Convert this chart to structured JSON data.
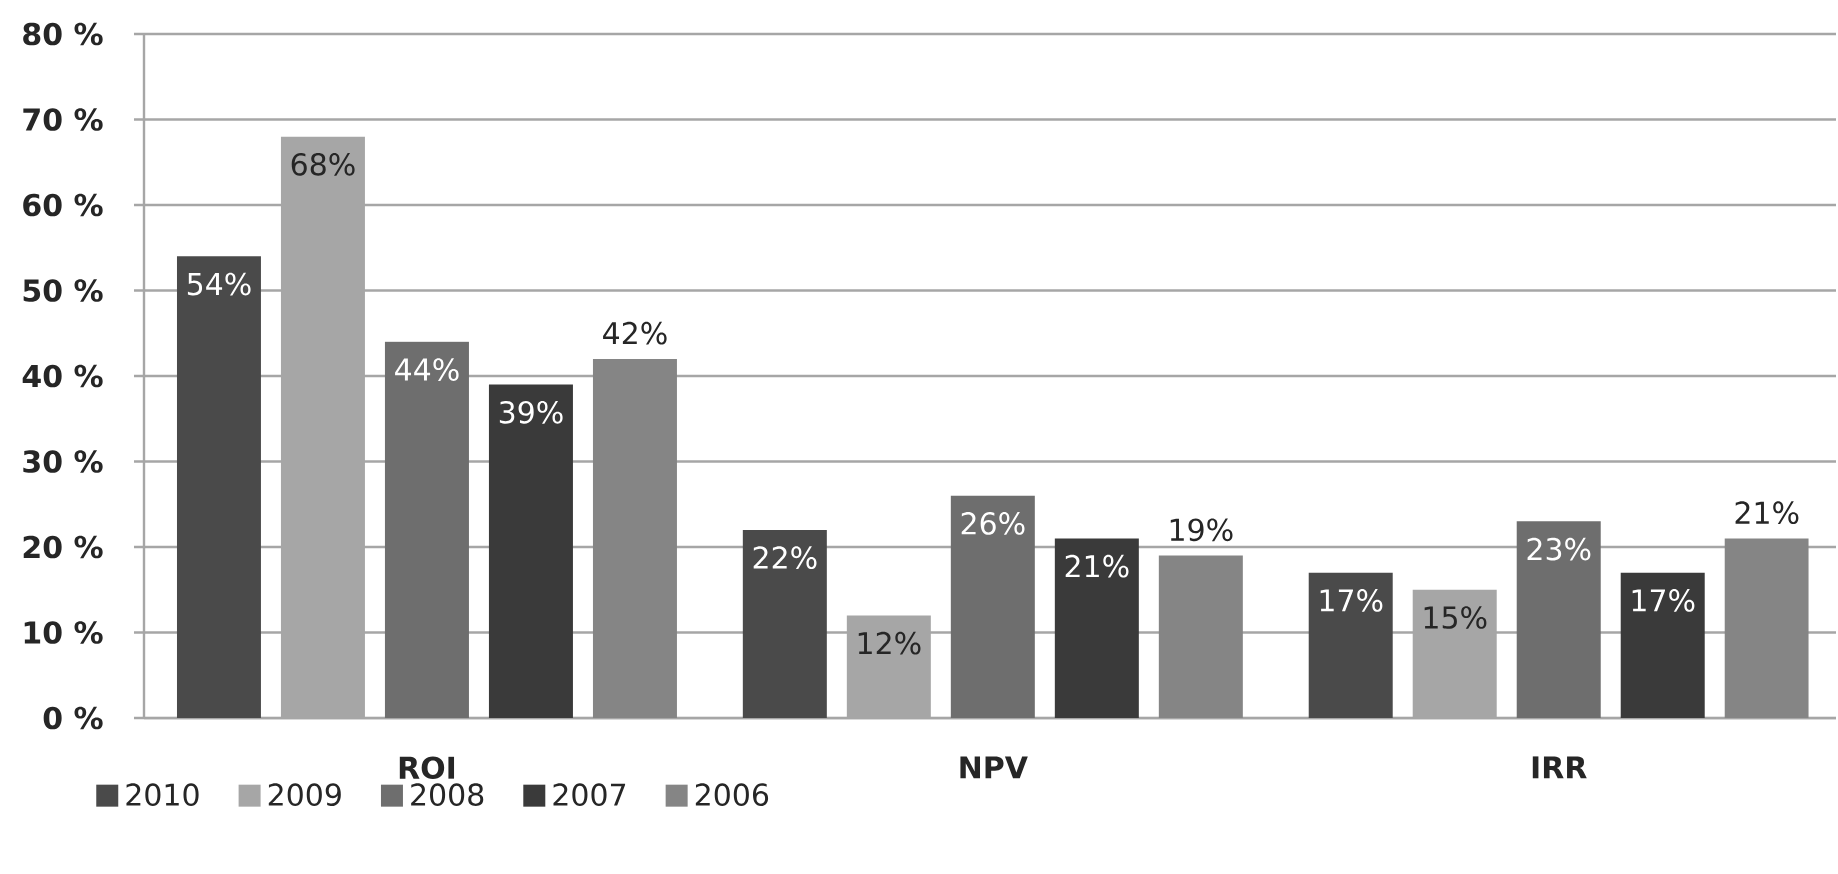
{
  "chart_data": {
    "type": "bar",
    "categories": [
      "ROI",
      "NPV",
      "IRR"
    ],
    "series": [
      {
        "name": "2010",
        "color": "#4a4a4a",
        "values": [
          54,
          22,
          17
        ],
        "value_labels": [
          "54%",
          "22%",
          "17%"
        ]
      },
      {
        "name": "2009",
        "color": "#a6a6a6",
        "values": [
          68,
          12,
          15
        ],
        "value_labels": [
          "68%",
          "12%",
          "15%"
        ]
      },
      {
        "name": "2008",
        "color": "#6e6e6e",
        "values": [
          44,
          26,
          23
        ],
        "value_labels": [
          "44%",
          "26%",
          "23%"
        ]
      },
      {
        "name": "2007",
        "color": "#3a3a3a",
        "values": [
          39,
          21,
          17
        ],
        "value_labels": [
          "39%",
          "21%",
          "17%"
        ]
      },
      {
        "name": "2006",
        "color": "#858585",
        "values": [
          42,
          19,
          21
        ],
        "value_labels": [
          "42%",
          "19%",
          "21%"
        ]
      }
    ],
    "ylim": [
      0,
      80
    ],
    "yticks": [
      {
        "value": 0,
        "label": "0 %"
      },
      {
        "value": 10,
        "label": "10 %"
      },
      {
        "value": 20,
        "label": "20 %"
      },
      {
        "value": 30,
        "label": "30 %"
      },
      {
        "value": 40,
        "label": "40 %"
      },
      {
        "value": 50,
        "label": "50 %"
      },
      {
        "value": 60,
        "label": "60 %"
      },
      {
        "value": 70,
        "label": "70 %"
      },
      {
        "value": 80,
        "label": "80 %"
      }
    ],
    "grid": "y",
    "legend": "bottom"
  }
}
